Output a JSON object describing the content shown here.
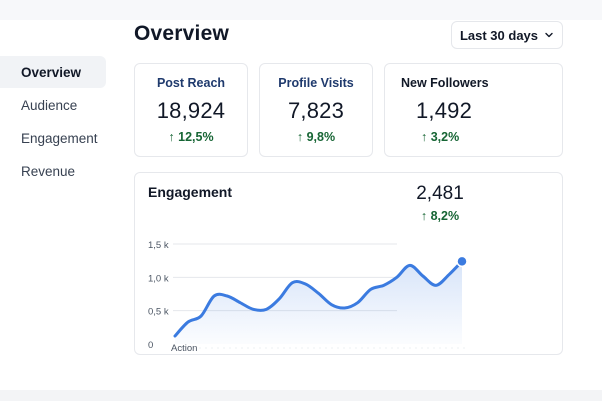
{
  "header": {
    "title": "Overview",
    "range_label": "Last 30 days"
  },
  "sidebar": {
    "items": [
      {
        "label": "Overview",
        "active": true
      },
      {
        "label": "Audience",
        "active": false
      },
      {
        "label": "Engagement",
        "active": false
      },
      {
        "label": "Revenue",
        "active": false
      }
    ]
  },
  "stats": [
    {
      "label": "Post Reach",
      "value": "18,924",
      "change": "12,5%"
    },
    {
      "label": "Profile Visits",
      "value": "7,823",
      "change": "9,8%"
    },
    {
      "label": "New Followers",
      "value": "1,492",
      "change": "3,2%"
    }
  ],
  "engagement": {
    "title": "Engagement",
    "total": "2,481",
    "change": "8,2%"
  },
  "colors": {
    "accent": "#3b7be0",
    "positive": "#166534",
    "label_blue": "#1f3a6d"
  },
  "icons": {
    "dropdown": "chevron-down-icon",
    "up": "arrow-up-icon"
  },
  "chart_data": {
    "type": "area",
    "title": "Engagement",
    "xlabel": "",
    "ylabel": "",
    "x_ticks": [
      "Action"
    ],
    "y_ticks": [
      "0",
      "0,5 k",
      "1,0 k",
      "1,5 k"
    ],
    "ylim": [
      0,
      1500
    ],
    "grid": true,
    "x": [
      0,
      1,
      2,
      3,
      4,
      5,
      6,
      7,
      8,
      9,
      10,
      11,
      12,
      13,
      14,
      15,
      16,
      17,
      18,
      19,
      20,
      21,
      22
    ],
    "series": [
      {
        "values": [
          120,
          330,
          420,
          720,
          720,
          620,
          520,
          520,
          680,
          920,
          900,
          760,
          590,
          540,
          620,
          820,
          880,
          1000,
          1180,
          1020,
          880,
          1040,
          1240
        ]
      }
    ]
  }
}
